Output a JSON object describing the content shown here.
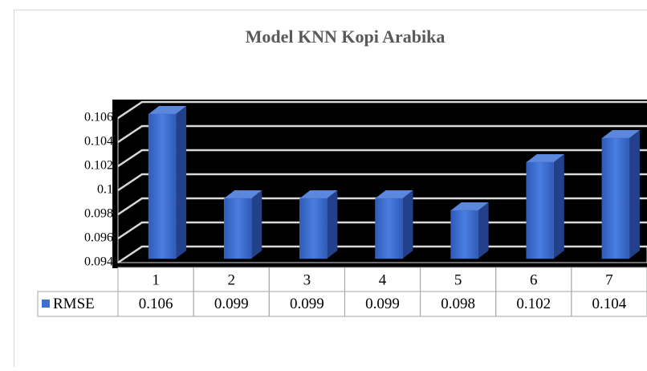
{
  "chart_data": {
    "type": "bar",
    "title": "Model KNN Kopi Arabika",
    "categories": [
      "1",
      "2",
      "3",
      "4",
      "5",
      "6",
      "7"
    ],
    "series": [
      {
        "name": "RMSE",
        "color": "#3f6fd0",
        "values": [
          0.106,
          0.099,
          0.099,
          0.099,
          0.098,
          0.102,
          0.104
        ]
      }
    ],
    "ylim": [
      0.094,
      0.106
    ],
    "yticks": [
      0.094,
      0.096,
      0.098,
      0.1,
      0.102,
      0.104,
      0.106
    ],
    "grid": true,
    "legend": "table"
  }
}
